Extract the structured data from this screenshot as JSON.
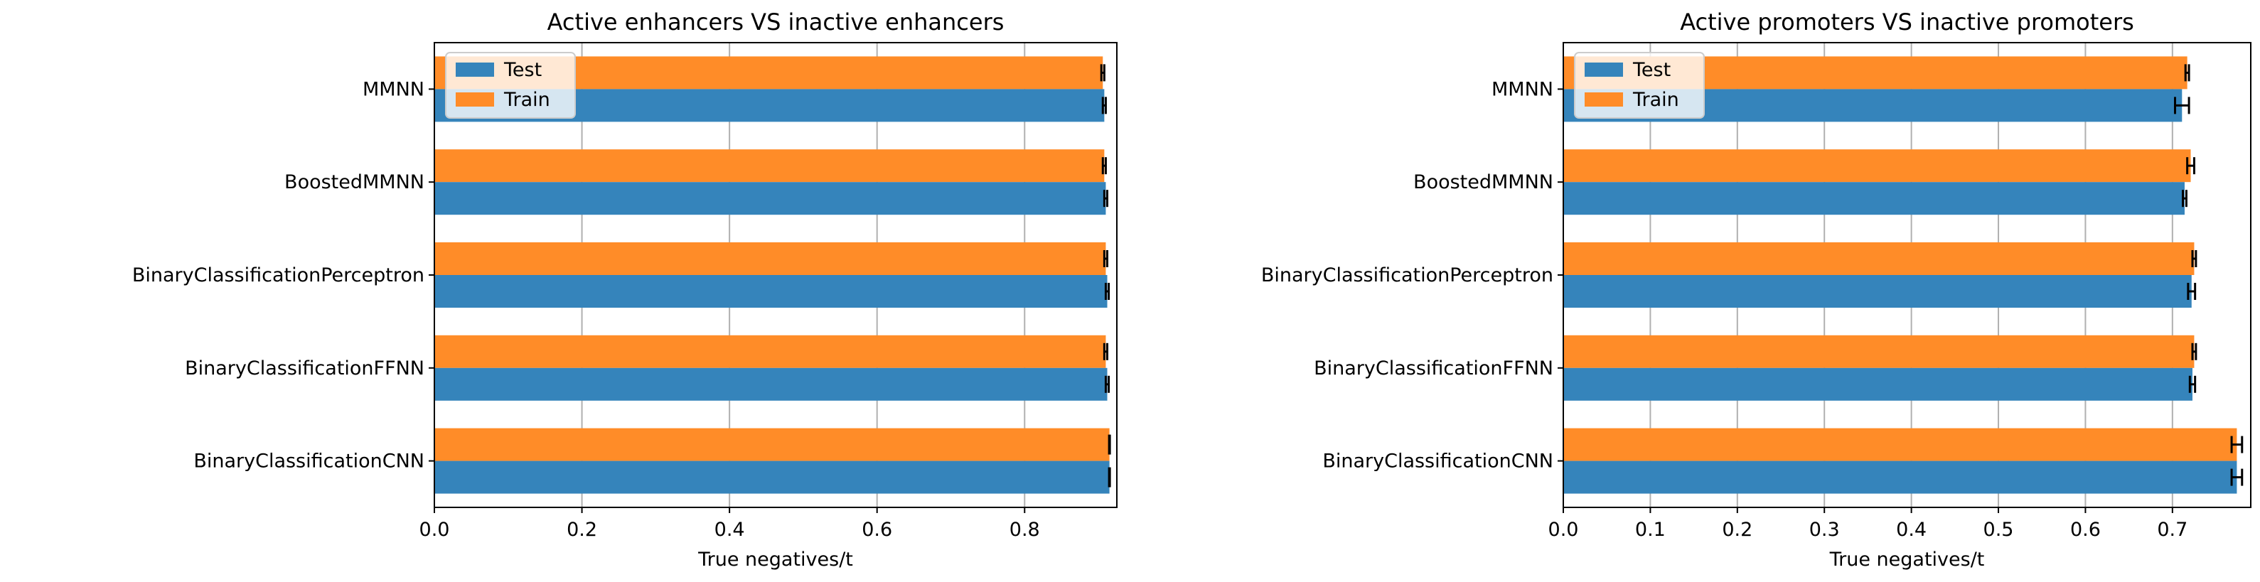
{
  "chart_data": [
    {
      "type": "bar",
      "orientation": "horizontal",
      "title": "Active enhancers VS inactive enhancers",
      "xlabel": "True negatives/t",
      "ylabel": "",
      "xlim": [
        0,
        0.925
      ],
      "xticks": [
        0.0,
        0.2,
        0.4,
        0.6,
        0.8
      ],
      "xtick_labels": [
        "0.0",
        "0.2",
        "0.4",
        "0.6",
        "0.8"
      ],
      "grid": "vertical",
      "legend_position": "top-left",
      "categories": [
        "MMNN",
        "BoostedMMNN",
        "BinaryClassificationPerceptron",
        "BinaryClassificationFFNN",
        "BinaryClassificationCNN"
      ],
      "series": [
        {
          "name": "Test",
          "color": "#3584bb",
          "values": [
            0.908,
            0.91,
            0.912,
            0.912,
            0.915
          ],
          "errors": [
            0.002,
            0.002,
            0.002,
            0.002,
            0.0
          ]
        },
        {
          "name": "Train",
          "color": "#ff8c28",
          "values": [
            0.906,
            0.908,
            0.91,
            0.91,
            0.915
          ],
          "errors": [
            0.002,
            0.002,
            0.002,
            0.002,
            0.0
          ]
        }
      ]
    },
    {
      "type": "bar",
      "orientation": "horizontal",
      "title": "Active promoters VS inactive promoters",
      "xlabel": "True negatives/t",
      "ylabel": "",
      "xlim": [
        0,
        0.79
      ],
      "xticks": [
        0.0,
        0.1,
        0.2,
        0.3,
        0.4,
        0.5,
        0.6,
        0.7
      ],
      "xtick_labels": [
        "0.0",
        "0.1",
        "0.2",
        "0.3",
        "0.4",
        "0.5",
        "0.6",
        "0.7"
      ],
      "grid": "vertical",
      "legend_position": "top-left",
      "categories": [
        "MMNN",
        "BoostedMMNN",
        "BinaryClassificationPerceptron",
        "BinaryClassificationFFNN",
        "BinaryClassificationCNN"
      ],
      "series": [
        {
          "name": "Test",
          "color": "#3584bb",
          "values": [
            0.711,
            0.714,
            0.722,
            0.723,
            0.774
          ],
          "errors": [
            0.008,
            0.002,
            0.004,
            0.003,
            0.006
          ]
        },
        {
          "name": "Train",
          "color": "#ff8c28",
          "values": [
            0.717,
            0.721,
            0.725,
            0.725,
            0.774
          ],
          "errors": [
            0.002,
            0.004,
            0.002,
            0.002,
            0.006
          ]
        }
      ]
    }
  ]
}
